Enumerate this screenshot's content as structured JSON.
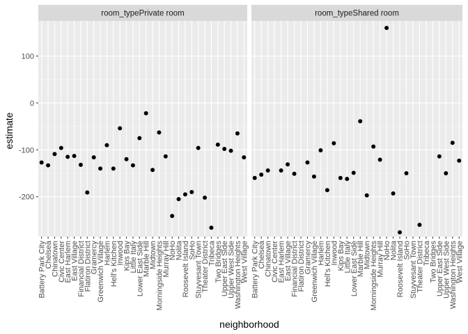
{
  "chart_data": {
    "type": "scatter",
    "xlabel": "neighborhood",
    "ylabel": "estimate",
    "ylim": [
      -285,
      175
    ],
    "yticks": [
      -200,
      -100,
      0,
      100
    ],
    "ytick_labels": [
      "-200",
      "-100",
      "0",
      "100"
    ],
    "grid": true,
    "facets": [
      {
        "label": "room_typePrivate room",
        "categories": [
          "Battery Park City",
          "Chelsea",
          "Chinatown",
          "Civic Center",
          "East Harlem",
          "East Village",
          "Financial District",
          "Flatiron District",
          "Gramercy",
          "Greenwich Village",
          "Harlem",
          "Hell's Kitchen",
          "Inwood",
          "Kips Bay",
          "Little Italy",
          "Lower East Side",
          "Marble Hill",
          "Midtown",
          "Morningside Heights",
          "Murray Hill",
          "NoHo",
          "Nolita",
          "Roosevelt Island",
          "SoHo",
          "Stuyvesant Town",
          "Theater District",
          "Tribeca",
          "Two Bridges",
          "Upper East Side",
          "Upper West Side",
          "Washington Heights",
          "West Village"
        ],
        "values": [
          -127,
          -133,
          -109,
          -96,
          -115,
          -113,
          -132,
          -191,
          -116,
          -140,
          -90,
          -140,
          -54,
          -120,
          -133,
          -75,
          -22,
          -143,
          -63,
          -114,
          -241,
          -205,
          -195,
          -190,
          -96,
          -202,
          -266,
          -89,
          -98,
          -102,
          -65,
          -116
        ]
      },
      {
        "label": "room_typeShared room",
        "categories": [
          "Battery Park City",
          "Chelsea",
          "Chinatown",
          "Civic Center",
          "East Harlem",
          "East Village",
          "Financial District",
          "Flatiron District",
          "Gramercy",
          "Greenwich Village",
          "Harlem",
          "Hell's Kitchen",
          "Inwood",
          "Kips Bay",
          "Little Italy",
          "Lower East Side",
          "Marble Hill",
          "Midtown",
          "Morningside Heights",
          "Murray Hill",
          "NoHo",
          "Nolita",
          "Roosevelt Island",
          "SoHo",
          "Stuyvesant Town",
          "Theater District",
          "Tribeca",
          "Two Bridges",
          "Upper East Side",
          "Upper West Side",
          "Washington Heights",
          "West Village"
        ],
        "values": [
          -160,
          -153,
          -144,
          null,
          -144,
          -131,
          -151,
          null,
          -127,
          -157,
          -101,
          -186,
          -86,
          -160,
          -162,
          -149,
          -39,
          -197,
          -93,
          -121,
          160,
          -193,
          -276,
          -150,
          null,
          -260,
          null,
          null,
          -114,
          -150,
          -85,
          -123
        ]
      }
    ]
  }
}
